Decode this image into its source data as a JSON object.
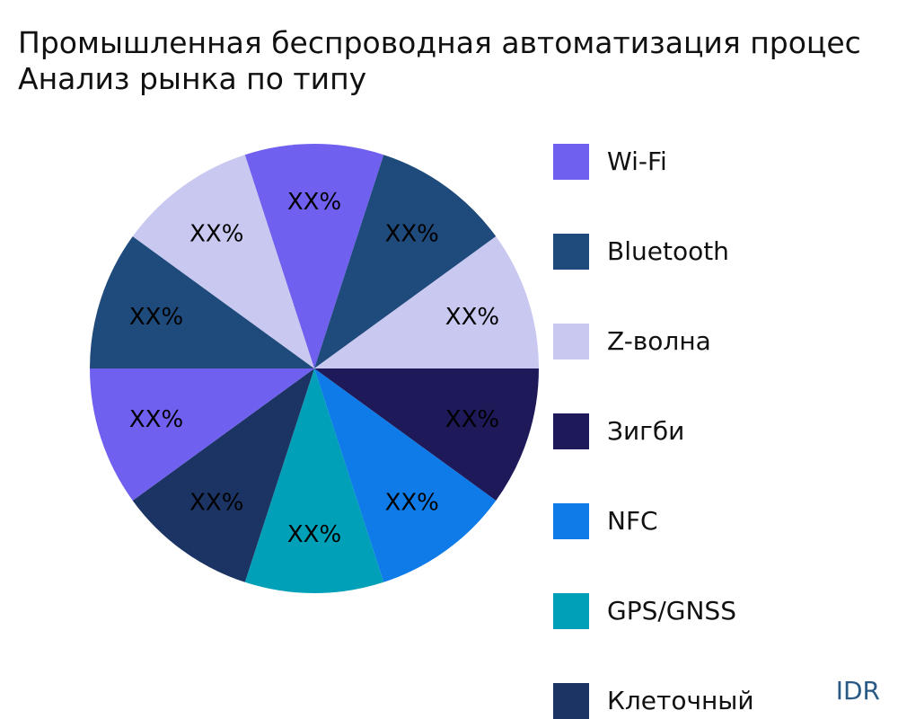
{
  "title_lines": [
    "Промышленная беспроводная автоматизация процес",
    "Анализ рынка по типу"
  ],
  "watermark": "IDR",
  "chart_data": {
    "type": "pie",
    "title": "Промышленная беспроводная автоматизация процес Анализ рынка по типу",
    "slice_label": "XX%",
    "slices": [
      {
        "label": "Wi-Fi",
        "value": 10,
        "color": "#7060f0"
      },
      {
        "label": "Bluetooth",
        "value": 10,
        "color": "#1f4a7c"
      },
      {
        "label": "Z-волна",
        "value": 10,
        "color": "#c8c8f0"
      },
      {
        "label": "Зигби",
        "value": 10,
        "color": "#1e1a5a"
      },
      {
        "label": "NFC",
        "value": 10,
        "color": "#0e7be8"
      },
      {
        "label": "GPS/GNSS",
        "value": 10,
        "color": "#00a0b8"
      },
      {
        "label": "Клеточный",
        "value": 10,
        "color": "#1b3464"
      },
      {
        "label": "",
        "value": 10,
        "color": "#7060f0"
      },
      {
        "label": "",
        "value": 10,
        "color": "#1f4a7c"
      },
      {
        "label": "",
        "value": 10,
        "color": "#c8c8f0"
      }
    ],
    "legend_position": "right"
  }
}
